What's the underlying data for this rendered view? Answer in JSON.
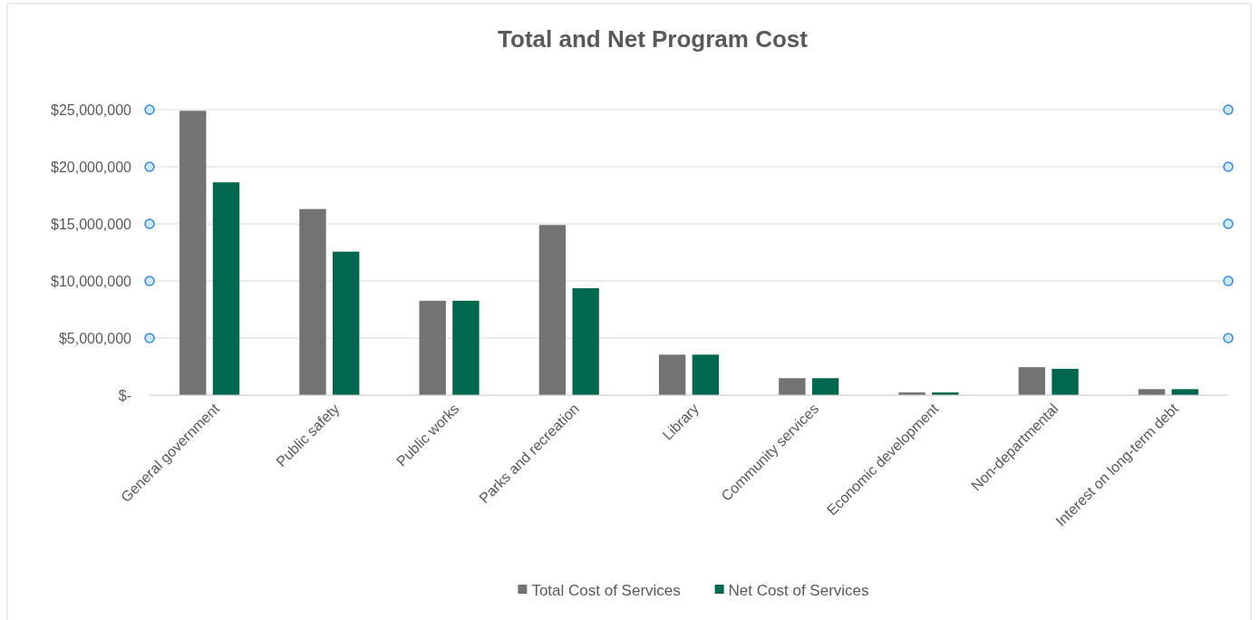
{
  "chart_data": {
    "type": "bar",
    "title": "Total and Net Program Cost",
    "categories": [
      "General government",
      "Public safety",
      "Public works",
      "Parks and recreation",
      "Library",
      "Community services",
      "Economic development",
      "Non-departmental",
      "Interest on long-term debt"
    ],
    "series": [
      {
        "name": "Total Cost of Services",
        "color": "#737373",
        "values": [
          24900000,
          16300000,
          8270000,
          14900000,
          3550000,
          1490000,
          250000,
          2450000,
          530000
        ]
      },
      {
        "name": "Net Cost of Services",
        "color": "#00684f",
        "values": [
          18640000,
          12570000,
          8270000,
          9370000,
          3550000,
          1490000,
          250000,
          2310000,
          530000
        ]
      }
    ],
    "ylim": [
      0,
      25000000
    ],
    "yticks": [
      {
        "value": 0,
        "label": "$-"
      },
      {
        "value": 5000000,
        "label": "$5,000,000"
      },
      {
        "value": 10000000,
        "label": "$10,000,000"
      },
      {
        "value": 15000000,
        "label": "$15,000,000"
      },
      {
        "value": 20000000,
        "label": "$20,000,000"
      },
      {
        "value": 25000000,
        "label": "$25,000,000"
      }
    ],
    "grid": "y",
    "legend": "bottom"
  }
}
